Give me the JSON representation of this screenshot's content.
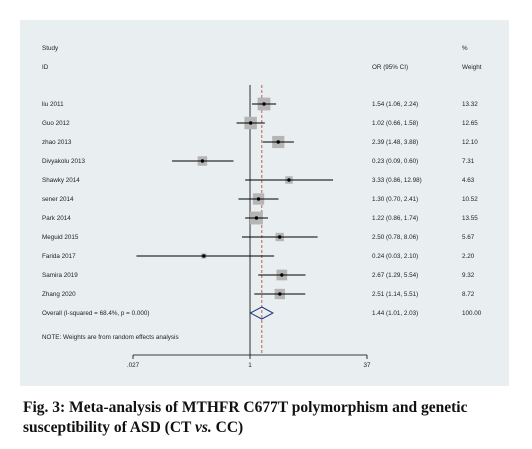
{
  "chart_data": {
    "type": "forest",
    "header": {
      "study": "Study",
      "id": "ID",
      "or_label": "OR (95% CI)",
      "pct": "%",
      "weight": "Weight"
    },
    "x_ticks": [
      {
        "value": 0.027,
        "label": ".027"
      },
      {
        "value": 1,
        "label": "1"
      },
      {
        "value": 37,
        "label": "37"
      }
    ],
    "x_scale": "log",
    "xlim": [
      0.027,
      37
    ],
    "reference_line": 1,
    "pooled_line": 1.44,
    "studies": [
      {
        "name": "liu 2011",
        "or": 1.54,
        "lo": 1.06,
        "hi": 2.24,
        "ci_text": "1.54 (1.06, 2.24)",
        "weight": "13.32"
      },
      {
        "name": "Guo 2012",
        "or": 1.02,
        "lo": 0.66,
        "hi": 1.58,
        "ci_text": "1.02 (0.66, 1.58)",
        "weight": "12.65"
      },
      {
        "name": "zhao 2013",
        "or": 2.39,
        "lo": 1.48,
        "hi": 3.88,
        "ci_text": "2.39 (1.48, 3.88)",
        "weight": "12.10"
      },
      {
        "name": "Divyakolu 2013",
        "or": 0.23,
        "lo": 0.09,
        "hi": 0.6,
        "ci_text": "0.23 (0.09, 0.60)",
        "weight": "7.31"
      },
      {
        "name": "Shawky 2014",
        "or": 3.33,
        "lo": 0.86,
        "hi": 12.98,
        "ci_text": "3.33 (0.86, 12.98)",
        "weight": "4.63"
      },
      {
        "name": "sener 2014",
        "or": 1.3,
        "lo": 0.7,
        "hi": 2.41,
        "ci_text": "1.30 (0.70, 2.41)",
        "weight": "10.52"
      },
      {
        "name": "Park 2014",
        "or": 1.22,
        "lo": 0.86,
        "hi": 1.74,
        "ci_text": "1.22 (0.86, 1.74)",
        "weight": "13.55"
      },
      {
        "name": "Meguid 2015",
        "or": 2.5,
        "lo": 0.78,
        "hi": 8.06,
        "ci_text": "2.50 (0.78, 8.06)",
        "weight": "5.67"
      },
      {
        "name": "Farida 2017",
        "or": 0.24,
        "lo": 0.03,
        "hi": 2.1,
        "ci_text": "0.24 (0.03, 2.10)",
        "weight": "2.20"
      },
      {
        "name": "Samira 2019",
        "or": 2.67,
        "lo": 1.29,
        "hi": 5.54,
        "ci_text": "2.67 (1.29, 5.54)",
        "weight": "9.32"
      },
      {
        "name": "Zhang 2020",
        "or": 2.51,
        "lo": 1.14,
        "hi": 5.51,
        "ci_text": "2.51 (1.14, 5.51)",
        "weight": "8.72"
      }
    ],
    "overall": {
      "label": "Overall  (I-squared = 68.4%, p = 0.000)",
      "or": 1.44,
      "lo": 1.01,
      "hi": 2.03,
      "ci_text": "1.44 (1.01, 2.03)",
      "weight": "100.00"
    },
    "note": "NOTE: Weights are from random effects analysis",
    "colors": {
      "panel": "#e9eef1",
      "box": "#b5b5b5",
      "line": "#000000",
      "diamond": "#1f3a80",
      "pooled_line": "#c0392b"
    }
  },
  "caption": {
    "prefix": "Fig. 3: Meta-analysis of MTHFR C677T polymorphism and genetic susceptibility of ASD (CT ",
    "vs": "vs.",
    "suffix": " CC)"
  }
}
